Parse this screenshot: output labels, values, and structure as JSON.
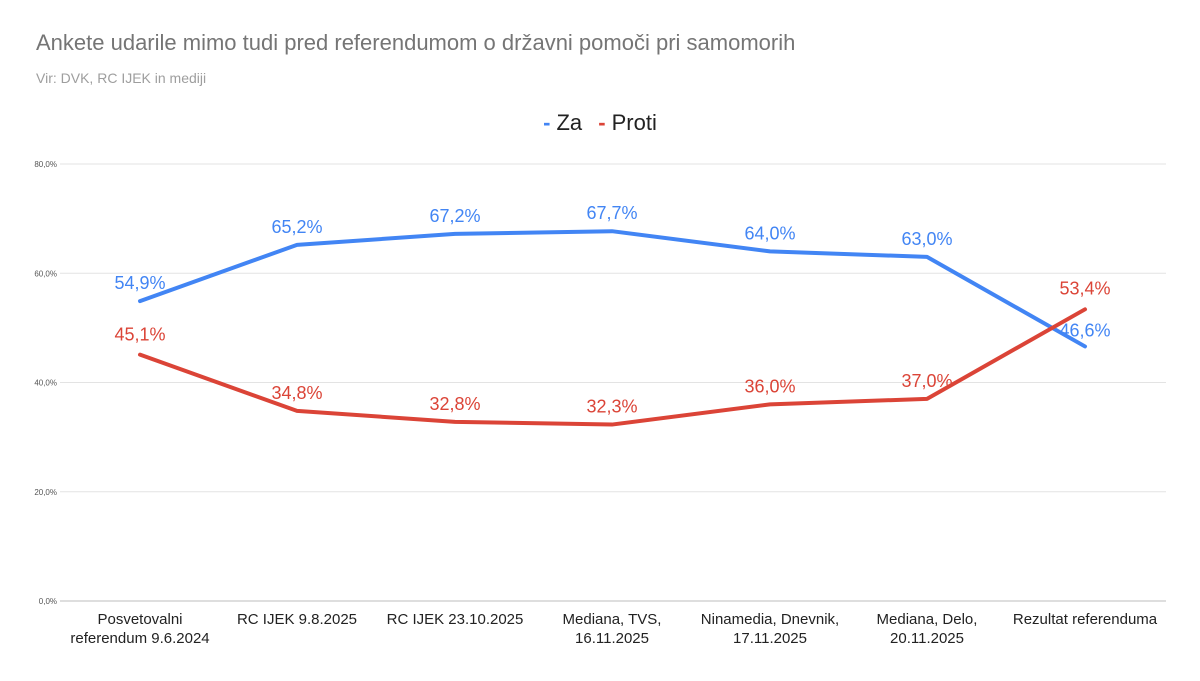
{
  "title": "Ankete udarile mimo tudi pred referendumom o državni pomoči pri samomorih",
  "subtitle": "Vir: DVK, RC IJEK in mediji",
  "legend": [
    {
      "name": "Za",
      "color": "#4285f4"
    },
    {
      "name": "Proti",
      "color": "#db4437"
    }
  ],
  "chart_data": {
    "type": "line",
    "title": "Ankete udarile mimo tudi pred referendumom o državni pomoči pri samomorih",
    "subtitle": "Vir: DVK, RC IJEK in mediji",
    "xlabel": "",
    "ylabel": "",
    "ylim": [
      0,
      80
    ],
    "yticks": [
      0,
      20,
      40,
      60,
      80
    ],
    "ytick_labels": [
      "0,0%",
      "20,0%",
      "40,0%",
      "60,0%",
      "80,0%"
    ],
    "grid": true,
    "legend_position": "top-center",
    "categories": [
      [
        "Posvetovalni",
        "referendum 9.6.2024"
      ],
      [
        "RC IJEK 9.8.2025"
      ],
      [
        "RC IJEK 23.10.2025"
      ],
      [
        "Mediana, TVS,",
        "16.11.2025"
      ],
      [
        "Ninamedia, Dnevnik,",
        "17.11.2025"
      ],
      [
        "Mediana, Delo,",
        "20.11.2025"
      ],
      [
        "Rezultat referenduma"
      ]
    ],
    "series": [
      {
        "name": "Za",
        "color": "#4285f4",
        "values": [
          54.9,
          65.2,
          67.2,
          67.7,
          64.0,
          63.0,
          46.6
        ],
        "labels": [
          "54,9%",
          "65,2%",
          "67,2%",
          "67,7%",
          "64,0%",
          "63,0%",
          "46,6%"
        ]
      },
      {
        "name": "Proti",
        "color": "#db4437",
        "values": [
          45.1,
          34.8,
          32.8,
          32.3,
          36.0,
          37.0,
          53.4
        ],
        "labels": [
          "45,1%",
          "34,8%",
          "32,8%",
          "32,3%",
          "36,0%",
          "37,0%",
          "53,4%"
        ]
      }
    ]
  }
}
